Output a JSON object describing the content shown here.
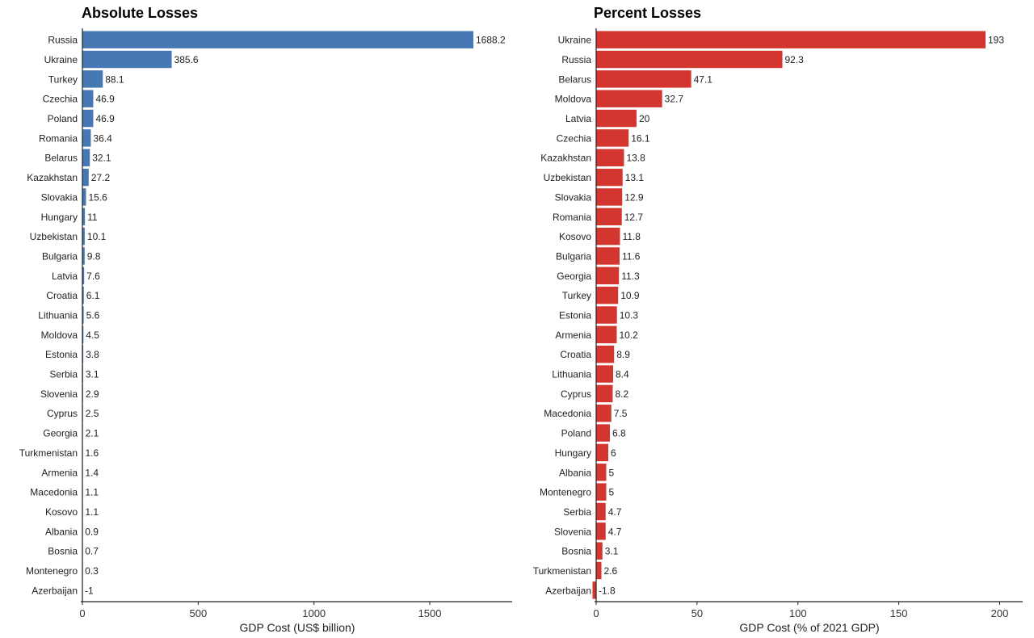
{
  "chart_data": [
    {
      "type": "bar",
      "orientation": "horizontal",
      "title": "Absolute Losses",
      "xlabel": "GDP Cost (US$ billion)",
      "ylabel": "",
      "xlim": [
        0,
        1850
      ],
      "xticks": [
        0,
        500,
        1000,
        1500
      ],
      "color": "#4678b4",
      "grid": false,
      "categories": [
        "Russia",
        "Ukraine",
        "Turkey",
        "Czechia",
        "Poland",
        "Romania",
        "Belarus",
        "Kazakhstan",
        "Slovakia",
        "Hungary",
        "Uzbekistan",
        "Bulgaria",
        "Latvia",
        "Croatia",
        "Lithuania",
        "Moldova",
        "Estonia",
        "Serbia",
        "Slovenia",
        "Cyprus",
        "Georgia",
        "Turkmenistan",
        "Armenia",
        "Macedonia",
        "Kosovo",
        "Albania",
        "Bosnia",
        "Montenegro",
        "Azerbaijan"
      ],
      "values": [
        1688.2,
        385.6,
        88.1,
        46.9,
        46.9,
        36.4,
        32.1,
        27.2,
        15.6,
        11,
        10.1,
        9.8,
        7.6,
        6.1,
        5.6,
        4.5,
        3.8,
        3.1,
        2.9,
        2.5,
        2.1,
        1.6,
        1.4,
        1.1,
        1.1,
        0.9,
        0.7,
        0.3,
        -1
      ]
    },
    {
      "type": "bar",
      "orientation": "horizontal",
      "title": "Percent Losses",
      "xlabel": "GDP Cost (% of 2021 GDP)",
      "ylabel": "",
      "xlim": [
        0,
        212
      ],
      "xticks": [
        0,
        50,
        100,
        150,
        200
      ],
      "color": "#d3352f",
      "grid": false,
      "categories": [
        "Ukraine",
        "Russia",
        "Belarus",
        "Moldova",
        "Latvia",
        "Czechia",
        "Kazakhstan",
        "Uzbekistan",
        "Slovakia",
        "Romania",
        "Kosovo",
        "Bulgaria",
        "Georgia",
        "Turkey",
        "Estonia",
        "Armenia",
        "Croatia",
        "Lithuania",
        "Cyprus",
        "Macedonia",
        "Poland",
        "Hungary",
        "Albania",
        "Montenegro",
        "Serbia",
        "Slovenia",
        "Bosnia",
        "Turkmenistan",
        "Azerbaijan"
      ],
      "values": [
        193,
        92.3,
        47.1,
        32.7,
        20,
        16.1,
        13.8,
        13.1,
        12.9,
        12.7,
        11.8,
        11.6,
        11.3,
        10.9,
        10.3,
        10.2,
        8.9,
        8.4,
        8.2,
        7.5,
        6.8,
        6,
        5,
        5,
        4.7,
        4.7,
        3.1,
        2.6,
        -1.8
      ]
    }
  ]
}
